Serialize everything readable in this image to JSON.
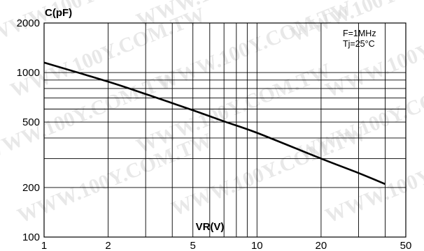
{
  "chart_data": {
    "type": "line",
    "xlabel": "VR(V)",
    "ylabel": "C(pF)",
    "x_scale": "log",
    "y_scale": "log",
    "xlim": [
      1,
      50
    ],
    "ylim": [
      100,
      2000
    ],
    "x_ticks": [
      1,
      2,
      5,
      10,
      20,
      50
    ],
    "y_ticks": [
      100,
      200,
      500,
      1000,
      2000
    ],
    "x_gridlines": [
      1,
      2,
      3,
      4,
      5,
      6,
      7,
      8,
      9,
      10,
      20,
      30,
      40,
      50
    ],
    "y_gridlines": [
      100,
      200,
      300,
      400,
      500,
      600,
      700,
      800,
      900,
      1000,
      2000
    ],
    "grid": true,
    "annotations": [
      "F=1MHz",
      "Tj=25°C"
    ],
    "watermark": "WWW.100Y.COM.TW",
    "series": [
      {
        "x": [
          1,
          2,
          3,
          5,
          7,
          10,
          20,
          30,
          40
        ],
        "y": [
          1150,
          880,
          740,
          590,
          505,
          430,
          300,
          245,
          210
        ]
      }
    ]
  }
}
